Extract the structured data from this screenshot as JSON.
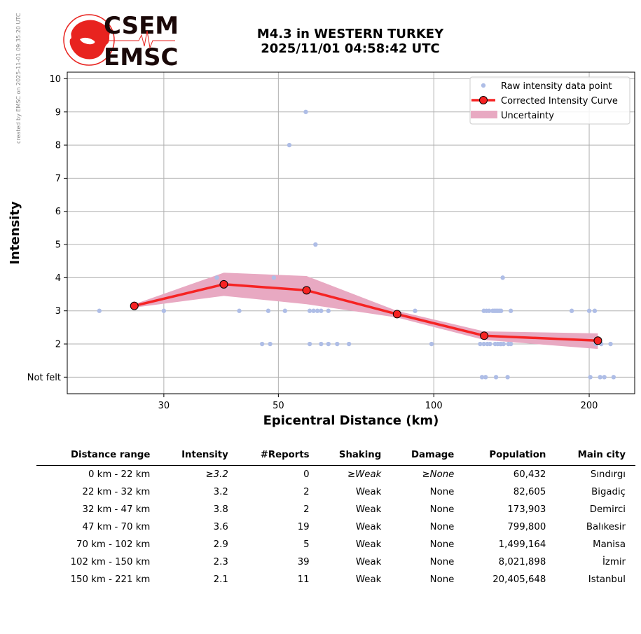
{
  "side_note": "created by EMSC on 2025-11-01 09:35:20 UTC",
  "logo": {
    "line1": "CSEM",
    "line2": "EMSC",
    "red": "#e8231f"
  },
  "title": {
    "line1": "M4.3 in WESTERN TURKEY",
    "line2": "2025/11/01 04:58:42 UTC"
  },
  "chart_data": {
    "type": "scatter",
    "xlabel": "Epicentral Distance (km)",
    "ylabel": "Intensity",
    "x_scale": "log",
    "xlim": [
      19.5,
      245
    ],
    "ylim": [
      0.5,
      10.2
    ],
    "x_ticks": [
      30,
      50,
      100,
      200
    ],
    "y_ticks": [
      {
        "value": 1,
        "label": "Not felt"
      },
      {
        "value": 2,
        "label": "2"
      },
      {
        "value": 3,
        "label": "3"
      },
      {
        "value": 4,
        "label": "4"
      },
      {
        "value": 5,
        "label": "5"
      },
      {
        "value": 6,
        "label": "6"
      },
      {
        "value": 7,
        "label": "7"
      },
      {
        "value": 8,
        "label": "8"
      },
      {
        "value": 9,
        "label": "9"
      },
      {
        "value": 10,
        "label": "10"
      }
    ],
    "grid": true,
    "legend_position": "top-right",
    "colors": {
      "raw": "#aebde6",
      "curve": "#f62323",
      "uncertainty": "#e8a9c2",
      "marker_edge": "#000000"
    },
    "series": [
      {
        "name": "Raw intensity data point",
        "points": [
          [
            22.5,
            3
          ],
          [
            30,
            3
          ],
          [
            38,
            4
          ],
          [
            42,
            3
          ],
          [
            46.5,
            2
          ],
          [
            47.8,
            3
          ],
          [
            48.2,
            2
          ],
          [
            49,
            4
          ],
          [
            51.5,
            3
          ],
          [
            52.5,
            8
          ],
          [
            56.5,
            9
          ],
          [
            57.5,
            3
          ],
          [
            57.5,
            2
          ],
          [
            58.5,
            3
          ],
          [
            59,
            5
          ],
          [
            59.5,
            3
          ],
          [
            60.5,
            3
          ],
          [
            60.5,
            2
          ],
          [
            62.5,
            3
          ],
          [
            62.5,
            2
          ],
          [
            65,
            2
          ],
          [
            68.5,
            2
          ],
          [
            92,
            3
          ],
          [
            99,
            2
          ],
          [
            123,
            2
          ],
          [
            124,
            1
          ],
          [
            125,
            3
          ],
          [
            125,
            2
          ],
          [
            126,
            1
          ],
          [
            126.5,
            3
          ],
          [
            127,
            2
          ],
          [
            128,
            3
          ],
          [
            128.5,
            2
          ],
          [
            130,
            3
          ],
          [
            131,
            3
          ],
          [
            131.5,
            2
          ],
          [
            132,
            3
          ],
          [
            132,
            1
          ],
          [
            133,
            3
          ],
          [
            133,
            2
          ],
          [
            134,
            3
          ],
          [
            134.5,
            2
          ],
          [
            135,
            3
          ],
          [
            135,
            2
          ],
          [
            136,
            4
          ],
          [
            136.5,
            2
          ],
          [
            139,
            1
          ],
          [
            139.5,
            2
          ],
          [
            141,
            3
          ],
          [
            141,
            2
          ],
          [
            185,
            3
          ],
          [
            200,
            3
          ],
          [
            201,
            1
          ],
          [
            205,
            3
          ],
          [
            206,
            2
          ],
          [
            210,
            1
          ],
          [
            211,
            2
          ],
          [
            214,
            1
          ],
          [
            220,
            2
          ],
          [
            223,
            1
          ]
        ]
      },
      {
        "name": "Corrected Intensity Curve",
        "points": [
          [
            26.3,
            3.15
          ],
          [
            39.2,
            3.8
          ],
          [
            56.7,
            3.62
          ],
          [
            84.9,
            2.9
          ],
          [
            125.2,
            2.25
          ],
          [
            207.9,
            2.1
          ]
        ]
      },
      {
        "name": "Uncertainty",
        "upper": [
          3.2,
          4.15,
          4.05,
          3.0,
          2.38,
          2.32
        ],
        "lower": [
          3.1,
          3.45,
          3.2,
          2.8,
          2.12,
          1.85
        ]
      }
    ]
  },
  "table": {
    "headers": [
      "Distance range",
      "Intensity",
      "#Reports",
      "Shaking",
      "Damage",
      "Population",
      "Main city"
    ],
    "rows": [
      [
        "0 km -   22 km",
        "≥3.2",
        "0",
        "≥Weak",
        "≥None",
        "60,432",
        "Sındırgı"
      ],
      [
        "22 km -   32 km",
        "3.2",
        "2",
        "Weak",
        "None",
        "82,605",
        "Bigadiç"
      ],
      [
        "32 km -   47 km",
        "3.8",
        "2",
        "Weak",
        "None",
        "173,903",
        "Demirci"
      ],
      [
        "47 km -   70 km",
        "3.6",
        "19",
        "Weak",
        "None",
        "799,800",
        "Balıkesir"
      ],
      [
        "70 km -  102 km",
        "2.9",
        "5",
        "Weak",
        "None",
        "1,499,164",
        "Manisa"
      ],
      [
        "102 km -  150 km",
        "2.3",
        "39",
        "Weak",
        "None",
        "8,021,898",
        "İzmir"
      ],
      [
        "150 km -  221 km",
        "2.1",
        "11",
        "Weak",
        "None",
        "20,405,648",
        "Istanbul"
      ]
    ]
  }
}
